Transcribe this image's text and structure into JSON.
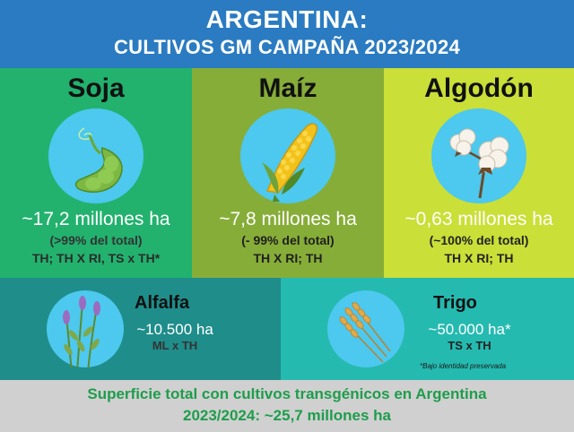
{
  "header": {
    "title": "ARGENTINA:",
    "subtitle": "CULTIVOS GM CAMPAÑA 2023/2024"
  },
  "crops": {
    "soja": {
      "name": "Soja",
      "area": "~17,2 millones ha",
      "share": "(>99% del total)",
      "events": "TH; TH X RI, TS x TH*",
      "icon": "soybean-icon"
    },
    "maiz": {
      "name": "Maíz",
      "area": "~7,8 millones ha",
      "share": "(- 99% del total)",
      "events": "TH X RI; TH",
      "icon": "corn-icon"
    },
    "algodon": {
      "name": "Algodón",
      "area": "~0,63 millones ha",
      "share": "(~100% del total)",
      "events": "TH X RI; TH",
      "icon": "cotton-icon"
    },
    "alfalfa": {
      "name": "Alfalfa",
      "area": "~10.500 ha",
      "events": "ML x TH",
      "icon": "alfalfa-icon"
    },
    "trigo": {
      "name": "Trigo",
      "area": "~50.000 ha*",
      "events": "TS x TH",
      "note": "*Bajo identidad preservada",
      "icon": "wheat-icon"
    }
  },
  "footer": {
    "line1": "Superficie total con cultivos transgénicos en Argentina",
    "line2": "2023/2024:  ~25,7 millones ha"
  },
  "colors": {
    "header": "#2a7bc1",
    "soja": "#22b26e",
    "maiz": "#86ad38",
    "algodon": "#cadf37",
    "alfalfa": "#1f8d8a",
    "trigo": "#25bab0",
    "icon_circle": "#4dc8ee",
    "footer_text": "#1e9d4c",
    "footer_bg": "#d0d0d0"
  }
}
